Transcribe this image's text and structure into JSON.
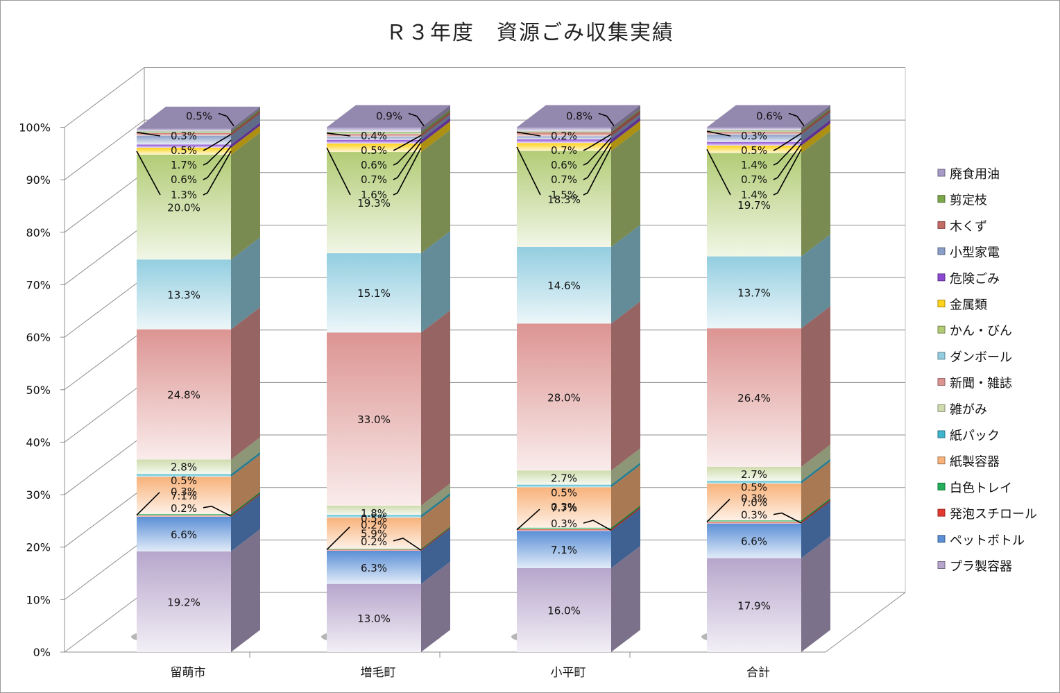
{
  "chart_data": {
    "type": "bar",
    "stacked": "percent",
    "three_d": true,
    "title": "Ｒ３年度　資源ごみ収集実績",
    "categories": [
      "留萌市",
      "増毛町",
      "小平町",
      "合計"
    ],
    "y_ticks": [
      "0%",
      "10%",
      "20%",
      "30%",
      "40%",
      "50%",
      "60%",
      "70%",
      "80%",
      "90%",
      "100%"
    ],
    "ylim": [
      0,
      100
    ],
    "grid": true,
    "legend_position": "right",
    "series": [
      {
        "name": "プラ製容器",
        "color": "#b7a6cc",
        "values": [
          19.2,
          13.0,
          16.0,
          17.9
        ],
        "labels": [
          "19.2%",
          "13.0%",
          "16.0%",
          "17.9%"
        ]
      },
      {
        "name": "ペットボトル",
        "color": "#5b8fd6",
        "values": [
          6.6,
          6.3,
          7.1,
          6.6
        ],
        "labels": [
          "6.6%",
          "6.3%",
          "7.1%",
          "6.6%"
        ]
      },
      {
        "name": "発泡スチロール",
        "color": "#e53a30",
        "values": [
          0.2,
          0.2,
          0.3,
          0.3
        ],
        "labels": [
          "0.2%",
          "0.2%",
          "0.3%",
          "0.3%"
        ]
      },
      {
        "name": "白色トレイ",
        "color": "#22b05a",
        "values": [
          0.3,
          0.2,
          0.3,
          0.3
        ],
        "labels": [
          "0.3%",
          "0.2%",
          "0.3%",
          "0.3%"
        ]
      },
      {
        "name": "紙製容器",
        "color": "#f8b27a",
        "values": [
          7.1,
          5.9,
          7.7,
          7.0
        ],
        "labels": [
          "7.1%",
          "5.9%",
          "7.7%",
          "7.0%"
        ]
      },
      {
        "name": "紙パック",
        "color": "#3fb6cf",
        "values": [
          0.5,
          0.5,
          0.5,
          0.5
        ],
        "labels": [
          "0.5%",
          "0.5%",
          "0.5%",
          "0.5%"
        ]
      },
      {
        "name": "雑がみ",
        "color": "#cfdcae",
        "values": [
          2.8,
          1.8,
          2.7,
          2.7
        ],
        "labels": [
          "2.8%",
          "1.8%",
          "2.7%",
          "2.7%"
        ]
      },
      {
        "name": "新聞・雑誌",
        "color": "#dc9492",
        "values": [
          24.8,
          33.0,
          28.0,
          26.4
        ],
        "labels": [
          "24.8%",
          "33.0%",
          "28.0%",
          "26.4%"
        ]
      },
      {
        "name": "ダンボール",
        "color": "#93cee0",
        "values": [
          13.3,
          15.1,
          14.6,
          13.7
        ],
        "labels": [
          "13.3%",
          "15.1%",
          "14.6%",
          "13.7%"
        ]
      },
      {
        "name": "かん・びん",
        "color": "#b2cc76",
        "values": [
          20.0,
          19.3,
          18.3,
          19.7
        ],
        "labels": [
          "20.0%",
          "19.3%",
          "18.3%",
          "19.7%"
        ]
      },
      {
        "name": "金属類",
        "color": "#ffd31a",
        "values": [
          1.3,
          1.6,
          1.5,
          1.4
        ],
        "labels": [
          "1.3%",
          "1.6%",
          "1.5%",
          "1.4%"
        ]
      },
      {
        "name": "危険ごみ",
        "color": "#8a4ad1",
        "values": [
          0.6,
          0.7,
          0.7,
          0.7
        ],
        "labels": [
          "0.6%",
          "0.7%",
          "0.7%",
          "0.7%"
        ]
      },
      {
        "name": "小型家電",
        "color": "#8a9fc8",
        "values": [
          1.7,
          0.6,
          0.6,
          1.4
        ],
        "labels": [
          "1.7%",
          "0.6%",
          "0.6%",
          "1.4%"
        ]
      },
      {
        "name": "木くず",
        "color": "#c56a64",
        "values": [
          0.5,
          0.5,
          0.7,
          0.5
        ],
        "labels": [
          "0.5%",
          "0.5%",
          "0.7%",
          "0.5%"
        ]
      },
      {
        "name": "剪定枝",
        "color": "#7da84a",
        "values": [
          0.3,
          0.4,
          0.2,
          0.3
        ],
        "labels": [
          "0.3%",
          "0.4%",
          "0.2%",
          "0.3%"
        ]
      },
      {
        "name": "廃食用油",
        "color": "#a79ac6",
        "values": [
          0.5,
          0.9,
          0.8,
          0.6
        ],
        "labels": [
          "0.5%",
          "0.9%",
          "0.8%",
          "0.6%"
        ]
      }
    ]
  }
}
